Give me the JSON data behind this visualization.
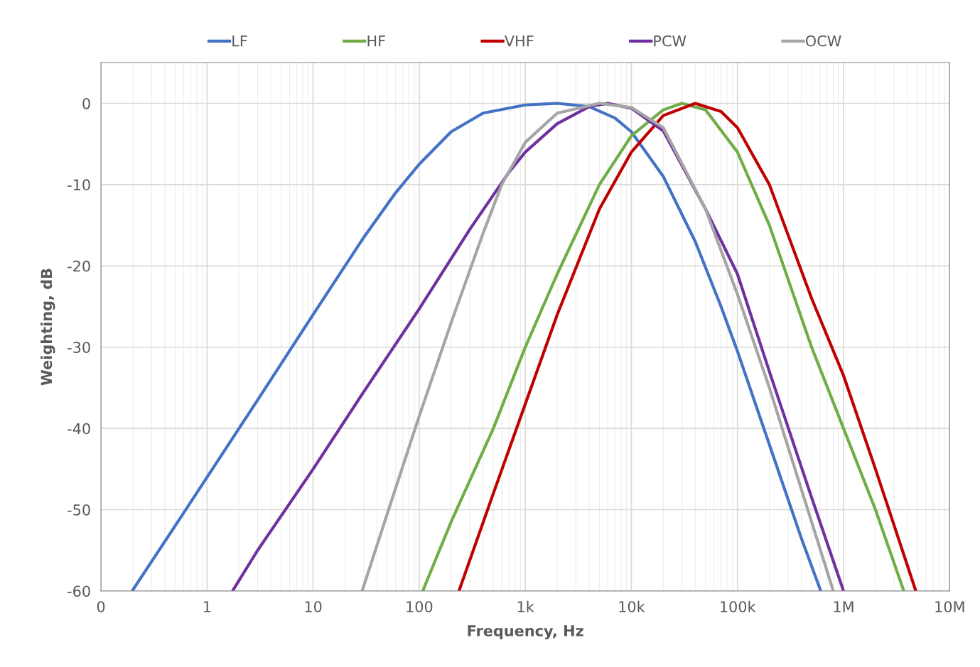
{
  "chart_data": {
    "type": "line",
    "xlabel": "Frequency, Hz",
    "ylabel": "Weighting, dB",
    "log": "x",
    "grid": true,
    "legend": "top",
    "marker": "none",
    "line_style": "solid",
    "xlim": [
      0.1,
      10000000
    ],
    "xticks": [
      {
        "value": 0.1,
        "label": "0"
      },
      1,
      10,
      100,
      {
        "value": 1000,
        "label": "1k"
      },
      {
        "value": 10000,
        "label": "10k"
      },
      {
        "value": 100000,
        "label": "100k"
      },
      {
        "value": 1000000,
        "label": "1M"
      },
      {
        "value": 10000000,
        "label": "10M"
      }
    ],
    "ylim": [
      -60,
      5
    ],
    "yticks": [
      -60,
      -50,
      -40,
      -30,
      -20,
      -10,
      0
    ],
    "series": [
      {
        "name": "LF",
        "color": "#4472c4",
        "x": [
          0.197,
          0.5,
          1,
          3,
          10,
          30,
          60,
          100,
          200,
          400,
          1000,
          2000,
          4000,
          7000,
          10000,
          20000,
          40000,
          70000,
          100000,
          200000,
          400000,
          610000
        ],
        "values": [
          -60,
          -52,
          -46,
          -36.5,
          -26,
          -16.5,
          -11,
          -7.5,
          -3.5,
          -1.2,
          -0.2,
          0,
          -0.4,
          -1.8,
          -3.5,
          -9,
          -17,
          -25,
          -30.5,
          -42,
          -53.5,
          -60
        ]
      },
      {
        "name": "HF",
        "color": "#70ad47",
        "x": [
          108,
          200,
          500,
          1000,
          2000,
          5000,
          10000,
          20000,
          30000,
          50000,
          100000,
          200000,
          500000,
          1000000,
          2000000,
          3700000
        ],
        "values": [
          -60,
          -51.5,
          -40,
          -30,
          -21,
          -10,
          -4,
          -0.8,
          0,
          -0.8,
          -6,
          -15,
          -30,
          -40,
          -50,
          -60
        ]
      },
      {
        "name": "VHF",
        "color": "#c00000",
        "x": [
          237,
          500,
          1000,
          2000,
          5000,
          10000,
          20000,
          40000,
          70000,
          100000,
          200000,
          500000,
          1000000,
          2000000,
          4800000
        ],
        "values": [
          -60,
          -48,
          -37,
          -26,
          -13,
          -6,
          -1.5,
          0,
          -1,
          -3,
          -10,
          -24,
          -33.5,
          -45,
          -60
        ]
      },
      {
        "name": "PCW",
        "color": "#7030a0",
        "x": [
          1.74,
          3,
          10,
          30,
          100,
          300,
          700,
          1000,
          2000,
          4000,
          6000,
          10000,
          20000,
          50000,
          100000,
          200000,
          500000,
          1000000
        ],
        "values": [
          -60,
          -55,
          -45,
          -35.5,
          -25.3,
          -15.5,
          -8.5,
          -6,
          -2.5,
          -0.4,
          0,
          -0.6,
          -3.4,
          -13,
          -21,
          -33,
          -48.5,
          -60
        ]
      },
      {
        "name": "OCW",
        "color": "#a5a5a5",
        "x": [
          29,
          50,
          100,
          200,
          400,
          600,
          1000,
          2000,
          5000,
          10000,
          20000,
          50000,
          100000,
          200000,
          500000,
          800000
        ],
        "values": [
          -60,
          -50.5,
          -38.5,
          -27,
          -16,
          -10,
          -4.8,
          -1.2,
          0,
          -0.5,
          -3,
          -13,
          -23.5,
          -35,
          -51.5,
          -60
        ]
      }
    ]
  }
}
